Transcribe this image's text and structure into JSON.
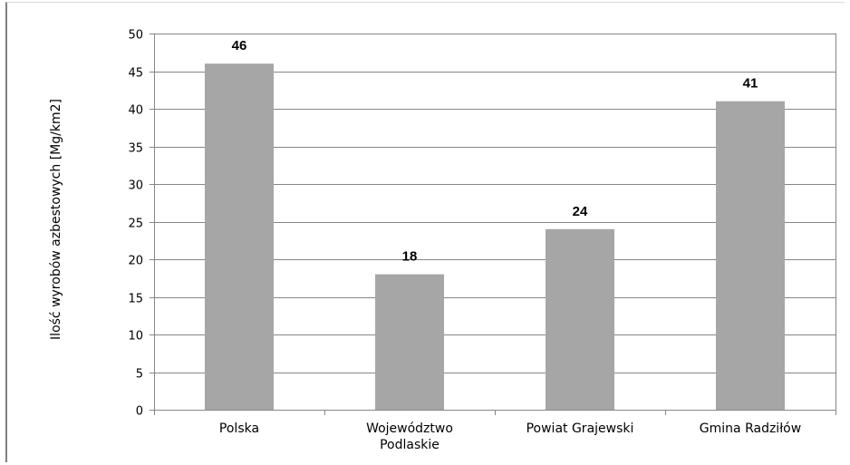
{
  "chart_data": {
    "type": "bar",
    "categories": [
      "Polska",
      "Województwo Podlaskie",
      "Powiat Grajewski",
      "Gmina Radziłów"
    ],
    "category_lines": [
      [
        "Polska"
      ],
      [
        "Województwo",
        "Podlaskie"
      ],
      [
        "Powiat Grajewski"
      ],
      [
        "Gmina Radziłów"
      ]
    ],
    "values": [
      46,
      18,
      24,
      41
    ],
    "data_labels": [
      "46",
      "18",
      "24",
      "41"
    ],
    "title": "",
    "xlabel": "",
    "ylabel": "Ilość wyrobów azbestowych [Mg/km2]",
    "ylim": [
      0,
      50
    ],
    "yticks": [
      0,
      5,
      10,
      15,
      20,
      25,
      30,
      35,
      40,
      45,
      50
    ],
    "grid": true,
    "legend": "none",
    "colors": {
      "bar": "#a6a6a6",
      "grid": "#868686",
      "axis": "#868686"
    }
  }
}
